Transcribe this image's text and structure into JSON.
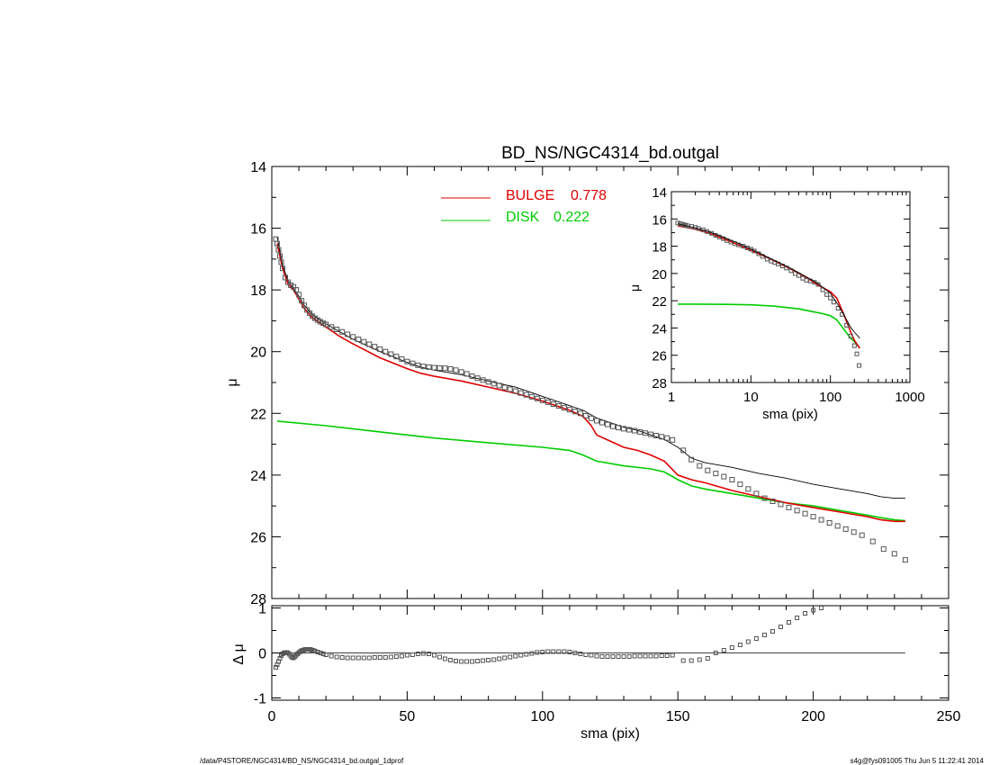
{
  "chart_data": [
    {
      "type": "line",
      "title": "BD_NS/NGC4314_bd.outgal",
      "xlabel": "",
      "ylabel": "μ",
      "xlim": [
        0,
        250
      ],
      "ylim": [
        28,
        14
      ],
      "yticks": [
        "14",
        "16",
        "18",
        "20",
        "22",
        "24",
        "26",
        "28"
      ],
      "legend": [
        {
          "label": "BULGE",
          "value": "0.778",
          "color": "#e00000"
        },
        {
          "label": "DISK",
          "value": "0.222",
          "color": "#00cc00"
        }
      ],
      "series": [
        {
          "name": "BULGE",
          "color": "#e00000",
          "style": "line",
          "x": [
            2,
            4,
            6,
            8,
            10,
            12,
            15,
            20,
            25,
            30,
            40,
            50,
            55,
            60,
            70,
            80,
            90,
            100,
            105,
            110,
            115,
            118,
            120,
            125,
            130,
            135,
            140,
            145,
            150,
            155,
            160,
            170,
            180,
            190,
            200,
            210,
            220,
            225,
            230,
            234
          ],
          "y": [
            16.5,
            17.3,
            17.8,
            18.0,
            18.3,
            18.6,
            18.9,
            19.2,
            19.5,
            19.75,
            20.2,
            20.55,
            20.7,
            20.8,
            20.95,
            21.15,
            21.35,
            21.6,
            21.75,
            21.9,
            22.1,
            22.4,
            22.7,
            22.9,
            23.1,
            23.2,
            23.35,
            23.55,
            24.0,
            24.15,
            24.25,
            24.5,
            24.7,
            24.9,
            25.05,
            25.2,
            25.35,
            25.45,
            25.5,
            25.5
          ]
        },
        {
          "name": "DISK",
          "color": "#00cc00",
          "style": "line",
          "x": [
            2,
            20,
            40,
            60,
            80,
            100,
            110,
            115,
            120,
            130,
            140,
            145,
            150,
            155,
            160,
            170,
            180,
            190,
            200,
            210,
            220,
            225,
            230,
            234
          ],
          "y": [
            22.25,
            22.4,
            22.6,
            22.8,
            22.95,
            23.1,
            23.2,
            23.35,
            23.55,
            23.7,
            23.8,
            23.9,
            24.15,
            24.35,
            24.45,
            24.6,
            24.75,
            24.9,
            25.0,
            25.15,
            25.3,
            25.38,
            25.45,
            25.48
          ]
        },
        {
          "name": "",
          "color": "#000000",
          "style": "thin-line",
          "x": [
            2,
            4,
            6,
            8,
            10,
            12,
            15,
            20,
            25,
            30,
            40,
            50,
            55,
            60,
            70,
            80,
            90,
            100,
            105,
            110,
            115,
            118,
            120,
            125,
            130,
            135,
            140,
            145,
            150,
            155,
            160,
            170,
            180,
            190,
            200,
            210,
            220,
            225,
            230,
            234
          ],
          "y": [
            16.3,
            17.2,
            17.7,
            17.95,
            18.2,
            18.5,
            18.8,
            19.1,
            19.35,
            19.6,
            20.0,
            20.35,
            20.5,
            20.6,
            20.75,
            20.95,
            21.15,
            21.45,
            21.6,
            21.75,
            21.9,
            22.05,
            22.15,
            22.3,
            22.45,
            22.55,
            22.7,
            22.85,
            23.1,
            23.45,
            23.6,
            23.75,
            23.95,
            24.1,
            24.3,
            24.45,
            24.6,
            24.7,
            24.75,
            24.75
          ]
        },
        {
          "name": "",
          "color": "#555555",
          "style": "square-markers",
          "x": [
            1.5,
            2,
            2.5,
            3,
            3.5,
            4,
            5,
            6,
            7,
            8,
            9,
            10,
            11,
            12,
            13,
            14,
            15,
            16,
            17,
            18,
            19,
            20,
            22,
            24,
            26,
            28,
            30,
            32,
            34,
            36,
            38,
            40,
            42,
            44,
            46,
            48,
            50,
            52,
            54,
            56,
            58,
            60,
            62,
            64,
            66,
            68,
            70,
            72,
            74,
            76,
            78,
            80,
            82,
            84,
            86,
            88,
            90,
            92,
            94,
            96,
            98,
            100,
            102,
            104,
            106,
            108,
            110,
            112,
            114,
            116,
            118,
            120,
            122,
            124,
            126,
            128,
            130,
            132,
            134,
            136,
            138,
            140,
            142,
            144,
            146,
            148,
            152,
            155,
            158,
            161,
            164,
            167,
            170,
            173,
            176,
            179,
            182,
            185,
            188,
            191,
            194,
            197,
            200,
            203,
            206,
            209,
            212,
            215,
            218,
            222,
            226,
            230,
            234
          ],
          "y": [
            16.35,
            16.5,
            16.7,
            16.9,
            17.1,
            17.3,
            17.6,
            17.75,
            17.85,
            17.9,
            18.0,
            18.15,
            18.35,
            18.5,
            18.65,
            18.75,
            18.85,
            18.92,
            18.98,
            19.03,
            19.08,
            19.12,
            19.2,
            19.28,
            19.36,
            19.44,
            19.52,
            19.6,
            19.68,
            19.76,
            19.84,
            19.92,
            20.0,
            20.08,
            20.16,
            20.24,
            20.32,
            20.38,
            20.44,
            20.48,
            20.5,
            20.52,
            20.53,
            20.54,
            20.56,
            20.6,
            20.66,
            20.72,
            20.8,
            20.86,
            20.92,
            20.98,
            21.04,
            21.1,
            21.16,
            21.22,
            21.28,
            21.34,
            21.4,
            21.46,
            21.52,
            21.58,
            21.64,
            21.7,
            21.76,
            21.82,
            21.88,
            21.94,
            22.0,
            22.08,
            22.16,
            22.24,
            22.3,
            22.36,
            22.42,
            22.46,
            22.5,
            22.53,
            22.56,
            22.6,
            22.64,
            22.68,
            22.72,
            22.76,
            22.8,
            22.86,
            23.2,
            23.5,
            23.7,
            23.85,
            23.95,
            24.05,
            24.15,
            24.3,
            24.45,
            24.6,
            24.75,
            24.85,
            24.95,
            25.05,
            25.15,
            25.25,
            25.35,
            25.45,
            25.55,
            25.65,
            25.75,
            25.85,
            25.95,
            26.15,
            26.4,
            26.55,
            26.75
          ]
        }
      ]
    },
    {
      "type": "scatter",
      "xlabel": "sma (pix)",
      "ylabel": "Δ μ",
      "xlim": [
        0,
        250
      ],
      "ylim": [
        -1,
        1
      ],
      "xticks": [
        "0",
        "50",
        "100",
        "150",
        "200",
        "250"
      ],
      "yticks": [
        "1",
        "0",
        "-1"
      ],
      "zero_line": {
        "x": [
          0,
          234
        ],
        "y": 0
      },
      "series": [
        {
          "name": "",
          "color": "#555555",
          "style": "square-markers",
          "x": [
            1.5,
            2,
            2.5,
            3,
            3.5,
            4,
            4.5,
            5,
            5.5,
            6,
            6.5,
            7,
            7.5,
            8,
            8.5,
            9,
            9.5,
            10,
            10.5,
            11,
            11.5,
            12,
            12.5,
            13,
            13.5,
            14,
            14.5,
            15,
            15.5,
            16,
            17,
            18,
            19,
            20,
            22,
            24,
            26,
            28,
            30,
            32,
            34,
            36,
            38,
            40,
            42,
            44,
            46,
            48,
            50,
            52,
            54,
            56,
            58,
            60,
            62,
            64,
            66,
            68,
            70,
            72,
            74,
            76,
            78,
            80,
            82,
            84,
            86,
            88,
            90,
            92,
            94,
            96,
            98,
            100,
            102,
            104,
            106,
            108,
            110,
            112,
            114,
            116,
            118,
            120,
            122,
            124,
            126,
            128,
            130,
            132,
            134,
            136,
            138,
            140,
            142,
            144,
            146,
            148,
            152,
            155,
            158,
            161,
            164,
            167,
            170,
            173,
            176,
            179,
            182,
            185,
            188,
            191,
            194,
            197,
            200,
            203
          ],
          "y": [
            -0.32,
            -0.26,
            -0.19,
            -0.12,
            -0.06,
            -0.02,
            0.0,
            0.01,
            0.01,
            0.0,
            -0.03,
            -0.07,
            -0.1,
            -0.11,
            -0.08,
            -0.05,
            -0.02,
            0.01,
            0.03,
            0.05,
            0.06,
            0.07,
            0.08,
            0.08,
            0.08,
            0.08,
            0.07,
            0.06,
            0.05,
            0.04,
            0.02,
            0.0,
            -0.02,
            -0.04,
            -0.07,
            -0.09,
            -0.1,
            -0.11,
            -0.11,
            -0.11,
            -0.11,
            -0.11,
            -0.1,
            -0.1,
            -0.1,
            -0.09,
            -0.08,
            -0.07,
            -0.05,
            -0.04,
            -0.02,
            -0.01,
            -0.02,
            -0.05,
            -0.09,
            -0.13,
            -0.16,
            -0.18,
            -0.19,
            -0.19,
            -0.19,
            -0.18,
            -0.17,
            -0.16,
            -0.15,
            -0.13,
            -0.11,
            -0.09,
            -0.07,
            -0.05,
            -0.03,
            -0.01,
            0.01,
            0.02,
            0.03,
            0.03,
            0.03,
            0.03,
            0.02,
            0.0,
            -0.02,
            -0.04,
            -0.05,
            -0.07,
            -0.08,
            -0.08,
            -0.08,
            -0.08,
            -0.08,
            -0.08,
            -0.07,
            -0.07,
            -0.07,
            -0.07,
            -0.07,
            -0.06,
            -0.06,
            -0.05,
            -0.17,
            -0.17,
            -0.15,
            -0.12,
            0.0,
            0.06,
            0.12,
            0.18,
            0.25,
            0.32,
            0.4,
            0.48,
            0.58,
            0.68,
            0.78,
            0.88,
            0.95,
            1.0
          ]
        }
      ]
    },
    {
      "type": "line",
      "xlabel": "sma (pix)",
      "ylabel": "μ",
      "xscale": "log",
      "xlim": [
        1,
        1000
      ],
      "ylim": [
        28,
        14
      ],
      "xticks": [
        "1",
        "10",
        "100",
        "1000"
      ],
      "yticks": [
        "14",
        "16",
        "18",
        "20",
        "22",
        "24",
        "26",
        "28"
      ],
      "series": [
        {
          "name": "BULGE",
          "color": "#e00000",
          "style": "line",
          "x": [
            1.2,
            2,
            3,
            5,
            7,
            10,
            15,
            20,
            30,
            50,
            70,
            100,
            120,
            150,
            180,
            200,
            234
          ],
          "y": [
            16.5,
            16.75,
            17.05,
            17.55,
            17.9,
            18.3,
            18.75,
            19.1,
            19.6,
            20.3,
            20.85,
            21.35,
            21.8,
            23.1,
            24.3,
            24.9,
            25.5
          ]
        },
        {
          "name": "DISK",
          "color": "#00cc00",
          "style": "line",
          "x": [
            1.2,
            2,
            5,
            10,
            20,
            40,
            60,
            80,
            100,
            120,
            150,
            180,
            200,
            234
          ],
          "y": [
            22.25,
            22.25,
            22.27,
            22.3,
            22.4,
            22.6,
            22.8,
            22.95,
            23.1,
            23.4,
            24.15,
            24.75,
            25.0,
            25.48
          ]
        },
        {
          "name": "",
          "color": "#000000",
          "style": "thin-line",
          "x": [
            1.2,
            2,
            3,
            5,
            7,
            10,
            15,
            20,
            30,
            50,
            70,
            100,
            120,
            150,
            180,
            200,
            234
          ],
          "y": [
            16.35,
            16.65,
            16.95,
            17.45,
            17.8,
            18.2,
            18.7,
            19.05,
            19.55,
            20.25,
            20.75,
            21.45,
            22.15,
            23.1,
            23.95,
            24.3,
            24.75
          ]
        },
        {
          "name": "",
          "color": "#555555",
          "style": "square-markers",
          "x": [
            1.2,
            1.3,
            1.4,
            1.5,
            1.6,
            1.8,
            2.0,
            2.2,
            2.5,
            2.8,
            3.2,
            3.6,
            4.0,
            4.5,
            5.0,
            5.6,
            6.3,
            7.0,
            8.0,
            9.0,
            10,
            11,
            12.5,
            14,
            16,
            18,
            20,
            22,
            25,
            28,
            32,
            36,
            40,
            45,
            50,
            56,
            63,
            70,
            80,
            90,
            100,
            110,
            125,
            140,
            160,
            180,
            200,
            215,
            230
          ],
          "y": [
            16.3,
            16.35,
            16.4,
            16.45,
            16.5,
            16.55,
            16.62,
            16.7,
            16.8,
            16.92,
            17.05,
            17.2,
            17.32,
            17.45,
            17.58,
            17.7,
            17.82,
            17.9,
            18.0,
            18.12,
            18.22,
            18.35,
            18.55,
            18.75,
            18.95,
            19.1,
            19.2,
            19.3,
            19.45,
            19.6,
            19.8,
            20.0,
            20.15,
            20.35,
            20.5,
            20.55,
            20.65,
            20.8,
            21.2,
            21.55,
            21.8,
            22.1,
            22.55,
            23.0,
            23.8,
            24.6,
            25.3,
            25.9,
            26.75
          ]
        }
      ]
    }
  ],
  "footer": {
    "left": "/data/P4STORE/NGC4314/BD_NS/NGC4314_bd.outgal_1dprof",
    "right": "s4g@fys091005  Thu Jun  5 11:22:41 2014"
  }
}
